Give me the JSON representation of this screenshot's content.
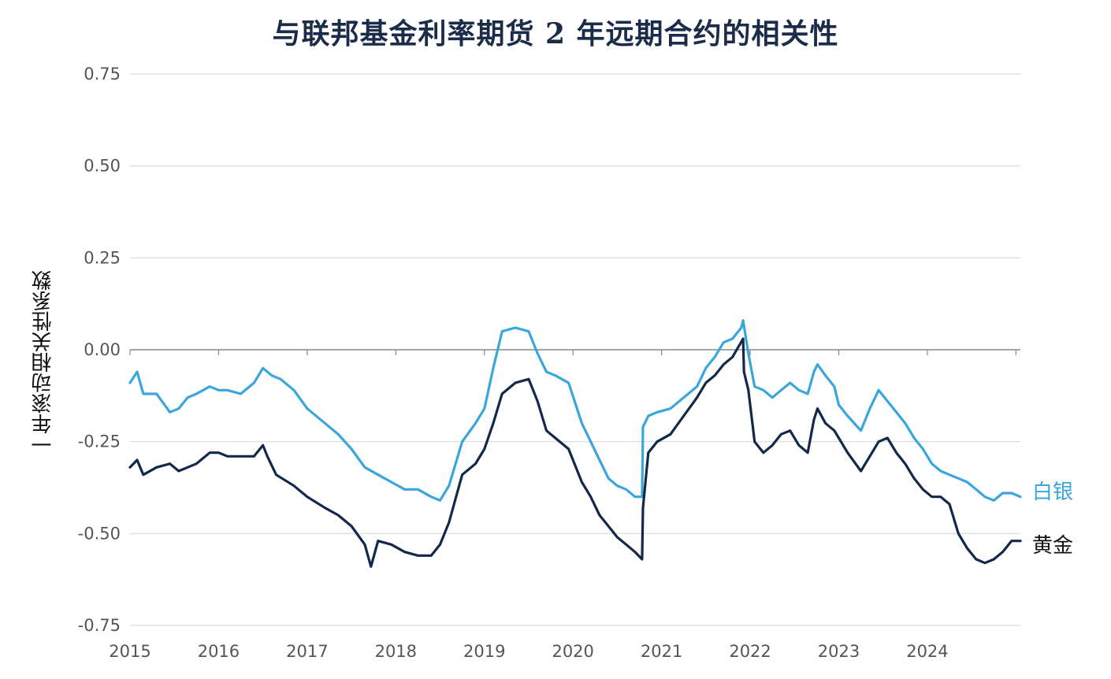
{
  "chart_data": {
    "type": "line",
    "title": "与联邦基金利率期货 2 年远期合约的相关性",
    "ylabel": "一年滚动相关性系数",
    "xlabel": "",
    "xlim": [
      2015.0,
      2025.05
    ],
    "ylim": [
      -0.75,
      0.75
    ],
    "yticks": [
      0.75,
      0.5,
      0.25,
      0.0,
      -0.25,
      -0.5,
      -0.75
    ],
    "ytick_labels": [
      "0.75",
      "0.50",
      "0.25",
      "0.00",
      "-0.25",
      "-0.50",
      "-0.75"
    ],
    "xticks": [
      2015,
      2016,
      2017,
      2018,
      2019,
      2020,
      2021,
      2022,
      2023,
      2024
    ],
    "xtick_labels": [
      "2015",
      "2016",
      "2017",
      "2018",
      "2019",
      "2020",
      "2021",
      "2022",
      "2023",
      "2024"
    ],
    "grid": true,
    "colors": {
      "silver": "#3aa6dc",
      "gold": "#14284b",
      "grid": "#d9d9d9",
      "axis": "#888888"
    },
    "series": [
      {
        "name": "白银",
        "x": [
          2015.0,
          2015.08,
          2015.15,
          2015.3,
          2015.45,
          2015.55,
          2015.65,
          2015.75,
          2015.9,
          2016.0,
          2016.1,
          2016.25,
          2016.4,
          2016.5,
          2016.6,
          2016.7,
          2016.85,
          2017.0,
          2017.2,
          2017.35,
          2017.5,
          2017.65,
          2017.8,
          2017.95,
          2018.1,
          2018.25,
          2018.4,
          2018.5,
          2018.6,
          2018.75,
          2018.9,
          2019.0,
          2019.1,
          2019.2,
          2019.35,
          2019.5,
          2019.6,
          2019.7,
          2019.8,
          2019.95,
          2020.1,
          2020.2,
          2020.3,
          2020.4,
          2020.5,
          2020.6,
          2020.7,
          2020.78,
          2020.79,
          2020.85,
          2020.95,
          2021.1,
          2021.25,
          2021.4,
          2021.5,
          2021.6,
          2021.7,
          2021.8,
          2021.9,
          2021.92,
          2021.98,
          2022.05,
          2022.15,
          2022.25,
          2022.35,
          2022.45,
          2022.55,
          2022.65,
          2022.72,
          2022.76,
          2022.85,
          2022.95,
          2023.0,
          2023.1,
          2023.25,
          2023.35,
          2023.45,
          2023.55,
          2023.65,
          2023.75,
          2023.85,
          2023.95,
          2024.05,
          2024.15,
          2024.25,
          2024.35,
          2024.45,
          2024.55,
          2024.65,
          2024.75,
          2024.85,
          2024.95,
          2025.05
        ],
        "values": [
          -0.09,
          -0.06,
          -0.12,
          -0.12,
          -0.17,
          -0.16,
          -0.13,
          -0.12,
          -0.1,
          -0.11,
          -0.11,
          -0.12,
          -0.09,
          -0.05,
          -0.07,
          -0.08,
          -0.11,
          -0.16,
          -0.2,
          -0.23,
          -0.27,
          -0.32,
          -0.34,
          -0.36,
          -0.38,
          -0.38,
          -0.4,
          -0.41,
          -0.37,
          -0.25,
          -0.2,
          -0.16,
          -0.05,
          0.05,
          0.06,
          0.05,
          -0.01,
          -0.06,
          -0.07,
          -0.09,
          -0.2,
          -0.25,
          -0.3,
          -0.35,
          -0.37,
          -0.38,
          -0.4,
          -0.4,
          -0.21,
          -0.18,
          -0.17,
          -0.16,
          -0.13,
          -0.1,
          -0.05,
          -0.02,
          0.02,
          0.03,
          0.06,
          0.08,
          -0.01,
          -0.1,
          -0.11,
          -0.13,
          -0.11,
          -0.09,
          -0.11,
          -0.12,
          -0.06,
          -0.04,
          -0.07,
          -0.1,
          -0.15,
          -0.18,
          -0.22,
          -0.16,
          -0.11,
          -0.14,
          -0.17,
          -0.2,
          -0.24,
          -0.27,
          -0.31,
          -0.33,
          -0.34,
          -0.35,
          -0.36,
          -0.38,
          -0.4,
          -0.41,
          -0.39,
          -0.39,
          -0.4
        ]
      },
      {
        "name": "黄金",
        "x": [
          2015.0,
          2015.08,
          2015.15,
          2015.3,
          2015.45,
          2015.55,
          2015.65,
          2015.75,
          2015.9,
          2016.0,
          2016.1,
          2016.25,
          2016.4,
          2016.5,
          2016.55,
          2016.65,
          2016.85,
          2017.0,
          2017.2,
          2017.35,
          2017.5,
          2017.65,
          2017.72,
          2017.8,
          2017.95,
          2018.1,
          2018.25,
          2018.4,
          2018.5,
          2018.6,
          2018.75,
          2018.9,
          2019.0,
          2019.1,
          2019.2,
          2019.35,
          2019.5,
          2019.6,
          2019.7,
          2019.8,
          2019.95,
          2020.1,
          2020.2,
          2020.3,
          2020.4,
          2020.5,
          2020.6,
          2020.7,
          2020.78,
          2020.79,
          2020.85,
          2020.95,
          2021.1,
          2021.25,
          2021.4,
          2021.5,
          2021.6,
          2021.7,
          2021.8,
          2021.92,
          2021.93,
          2021.98,
          2022.05,
          2022.15,
          2022.25,
          2022.35,
          2022.45,
          2022.55,
          2022.65,
          2022.72,
          2022.76,
          2022.85,
          2022.95,
          2023.0,
          2023.1,
          2023.25,
          2023.35,
          2023.45,
          2023.55,
          2023.65,
          2023.75,
          2023.85,
          2023.95,
          2024.05,
          2024.15,
          2024.25,
          2024.35,
          2024.45,
          2024.55,
          2024.65,
          2024.75,
          2024.85,
          2024.95,
          2025.05
        ],
        "values": [
          -0.32,
          -0.3,
          -0.34,
          -0.32,
          -0.31,
          -0.33,
          -0.32,
          -0.31,
          -0.28,
          -0.28,
          -0.29,
          -0.29,
          -0.29,
          -0.26,
          -0.29,
          -0.34,
          -0.37,
          -0.4,
          -0.43,
          -0.45,
          -0.48,
          -0.53,
          -0.59,
          -0.52,
          -0.53,
          -0.55,
          -0.56,
          -0.56,
          -0.53,
          -0.47,
          -0.34,
          -0.31,
          -0.27,
          -0.2,
          -0.12,
          -0.09,
          -0.08,
          -0.14,
          -0.22,
          -0.24,
          -0.27,
          -0.36,
          -0.4,
          -0.45,
          -0.48,
          -0.51,
          -0.53,
          -0.55,
          -0.57,
          -0.43,
          -0.28,
          -0.25,
          -0.23,
          -0.18,
          -0.13,
          -0.09,
          -0.07,
          -0.04,
          -0.02,
          0.03,
          -0.06,
          -0.11,
          -0.25,
          -0.28,
          -0.26,
          -0.23,
          -0.22,
          -0.26,
          -0.28,
          -0.19,
          -0.16,
          -0.2,
          -0.22,
          -0.24,
          -0.28,
          -0.33,
          -0.29,
          -0.25,
          -0.24,
          -0.28,
          -0.31,
          -0.35,
          -0.38,
          -0.4,
          -0.4,
          -0.42,
          -0.5,
          -0.54,
          -0.57,
          -0.58,
          -0.57,
          -0.55,
          -0.52,
          -0.52
        ]
      }
    ],
    "series_labels": {
      "silver": "白银",
      "gold": "黄金"
    }
  }
}
